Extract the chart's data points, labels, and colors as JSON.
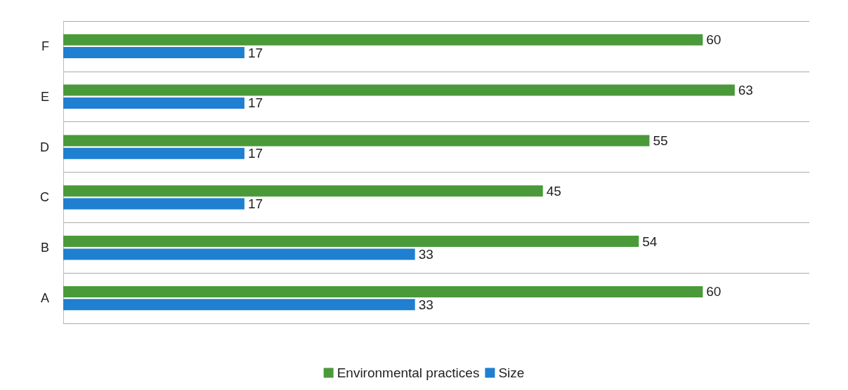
{
  "chart_data": {
    "type": "bar",
    "orientation": "horizontal",
    "categories": [
      "F",
      "E",
      "D",
      "C",
      "B",
      "A"
    ],
    "series": [
      {
        "name": "Environmental practices",
        "color": "#4a9a3a",
        "values": [
          60,
          63,
          55,
          45,
          54,
          60
        ]
      },
      {
        "name": "Size",
        "color": "#1f7fd0",
        "values": [
          17,
          17,
          17,
          17,
          33,
          33
        ]
      }
    ],
    "data_labels": true,
    "grid": "y",
    "legend": "bottom"
  }
}
